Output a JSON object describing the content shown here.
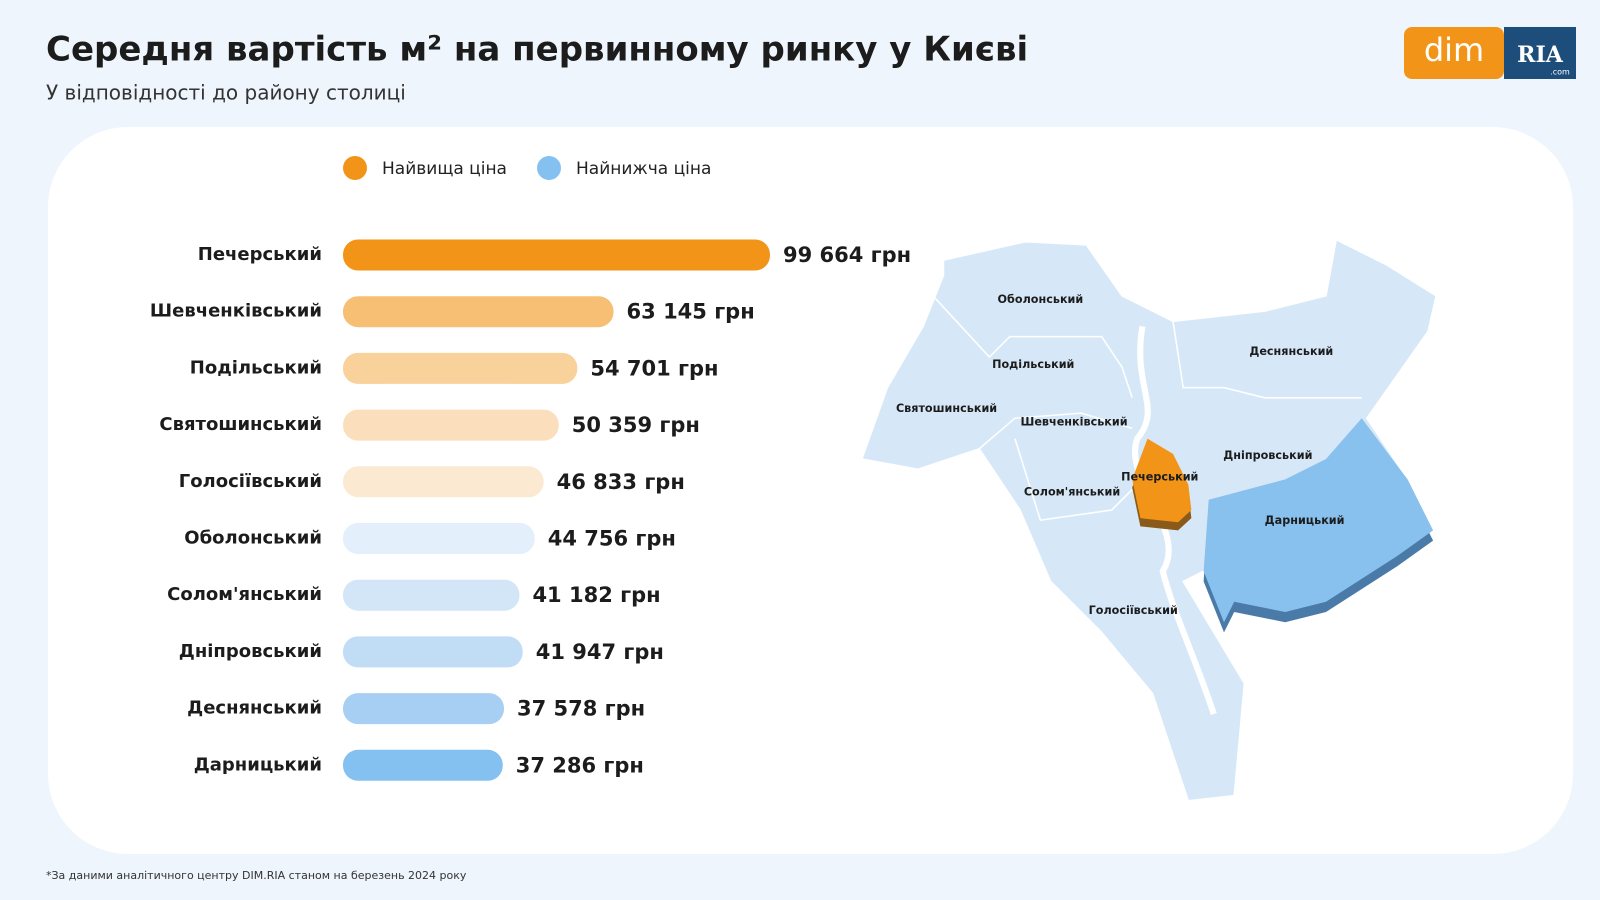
{
  "chart_data": {
    "type": "bar",
    "orientation": "horizontal",
    "title": "Середня вартість м² на первинному ринку у Києві",
    "subtitle": "У відповідності до району столиці",
    "legend": [
      {
        "name": "Найвища ціна",
        "color": "#f29418"
      },
      {
        "name": "Найнижча ціна",
        "color": "#85c1f0"
      }
    ],
    "categories": [
      "Печерський",
      "Шевченківський",
      "Подільський",
      "Святошинський",
      "Голосіївський",
      "Оболонський",
      "Солом'янський",
      "Дніпровський",
      "Деснянський",
      "Дарницький"
    ],
    "values": [
      99664,
      63145,
      54701,
      50359,
      46833,
      44756,
      41182,
      41947,
      37578,
      37286
    ],
    "value_labels": [
      "99 664 грн",
      "63 145 грн",
      "54 701 грн",
      "50 359 грн",
      "46 833 грн",
      "44 756 грн",
      "41 182 грн",
      "41 947 грн",
      "37 578 грн",
      "37 286 грн"
    ],
    "colors": [
      "#f29418",
      "#f7bf74",
      "#f9d19b",
      "#fbdfbc",
      "#fce9d2",
      "#e3effb",
      "#d2e6f8",
      "#c1ddf6",
      "#a7cff3",
      "#85c1f0"
    ]
  },
  "map": {
    "districts": [
      "Оболонський",
      "Деснянський",
      "Подільський",
      "Святошинський",
      "Шевченківський",
      "Дніпровський",
      "Печерський",
      "Солом'янський",
      "Дарницький",
      "Голосіївський"
    ]
  },
  "logo": {
    "left": "dim",
    "right": "RIA",
    "suffix": ".com"
  },
  "footnote": "*За даними аналітичного центру DIM.RIA станом на березень 2024 року"
}
